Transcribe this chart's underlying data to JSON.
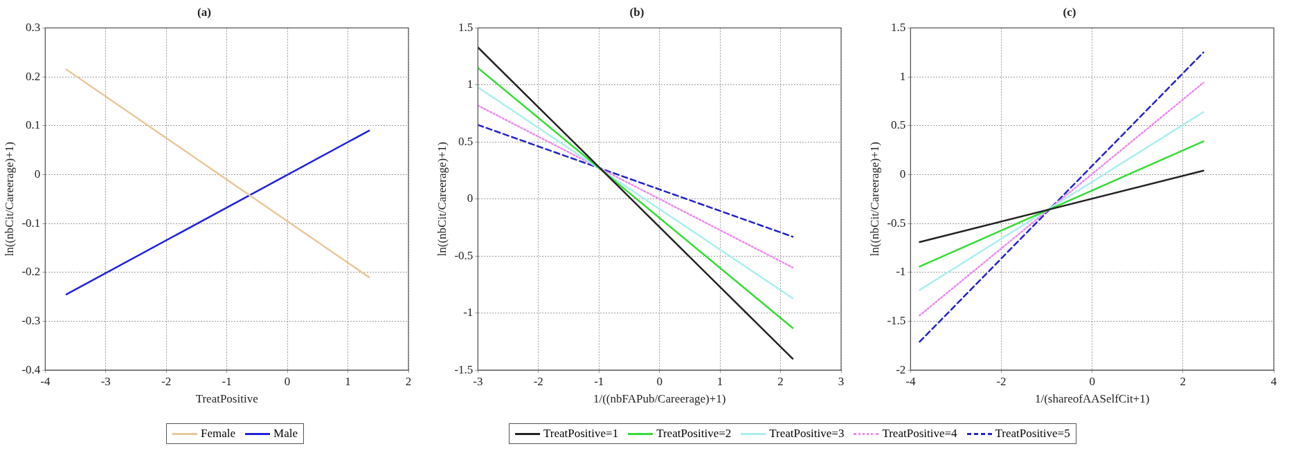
{
  "chart_data": [
    {
      "type": "line",
      "title": "(a)",
      "xlabel": "TreatPositive",
      "ylabel": "ln((nbCit/Careerage)+1)",
      "xlim": [
        -4,
        2
      ],
      "xticks": [
        -4,
        -3,
        -2,
        -1,
        0,
        1,
        2
      ],
      "ylim": [
        -0.4,
        0.3
      ],
      "yticks": [
        -0.4,
        -0.3,
        -0.2,
        -0.1,
        0,
        0.1,
        0.2,
        0.3
      ],
      "grid": true,
      "legend": "bottom",
      "marker": "none",
      "series": [
        {
          "name": "Female",
          "color": "#e8c89a",
          "x": [
            -3.65,
            1.35
          ],
          "values": [
            0.215,
            -0.21
          ],
          "line_style": "solid"
        },
        {
          "name": "Male",
          "color": "#2020e0",
          "x": [
            -3.65,
            1.35
          ],
          "values": [
            -0.245,
            0.09
          ],
          "line_style": "solid"
        }
      ]
    },
    {
      "type": "line",
      "title": "(b)",
      "xlabel": "1/((nbFAPub/Careerage)+1)",
      "ylabel": "ln((nbCit/Careerage)+1)",
      "xlim": [
        -3,
        3
      ],
      "xticks": [
        -3,
        -2,
        -1,
        0,
        1,
        2,
        3
      ],
      "ylim": [
        -1.5,
        1.5
      ],
      "yticks": [
        -1.5,
        -1,
        -0.5,
        0,
        0.5,
        1,
        1.5
      ],
      "grid": true,
      "legend": "bottom",
      "marker": "none",
      "series": [
        {
          "name": "TreatPositive=1",
          "color": "#222222",
          "x": [
            -3,
            2.2
          ],
          "values": [
            1.33,
            -1.4
          ],
          "line_style": "solid"
        },
        {
          "name": "TreatPositive=2",
          "color": "#33dd33",
          "x": [
            -3,
            2.2
          ],
          "values": [
            1.15,
            -1.13
          ],
          "line_style": "solid"
        },
        {
          "name": "TreatPositive=3",
          "color": "#aaeeee",
          "x": [
            -3,
            2.2
          ],
          "values": [
            0.98,
            -0.87
          ],
          "line_style": "solid"
        },
        {
          "name": "TreatPositive=4",
          "color": "#ee88ee",
          "x": [
            -3,
            2.2
          ],
          "values": [
            0.82,
            -0.6
          ],
          "line_style": "dotted"
        },
        {
          "name": "TreatPositive=5",
          "color": "#2222cc",
          "x": [
            -3,
            2.2
          ],
          "values": [
            0.65,
            -0.33
          ],
          "line_style": "dashed"
        }
      ]
    },
    {
      "type": "line",
      "title": "(c)",
      "xlabel": "1/(shareofAASelfCit+1)",
      "ylabel": "ln((nbCit/Careerage)+1)",
      "xlim": [
        -4,
        4
      ],
      "xticks": [
        -4,
        -2,
        0,
        2,
        4
      ],
      "ylim": [
        -2,
        1.5
      ],
      "yticks": [
        -2,
        -1.5,
        -1,
        -0.5,
        0,
        0.5,
        1,
        1.5
      ],
      "grid": true,
      "marker": "none",
      "series": [
        {
          "color": "#222222",
          "x": [
            -3.8,
            2.45
          ],
          "values": [
            -0.69,
            0.04
          ],
          "line_style": "solid"
        },
        {
          "color": "#33dd33",
          "x": [
            -3.8,
            2.45
          ],
          "values": [
            -0.94,
            0.34
          ],
          "line_style": "solid"
        },
        {
          "color": "#aaeeee",
          "x": [
            -3.8,
            2.45
          ],
          "values": [
            -1.18,
            0.64
          ],
          "line_style": "solid"
        },
        {
          "color": "#ee88ee",
          "x": [
            -3.8,
            2.45
          ],
          "values": [
            -1.44,
            0.94
          ],
          "line_style": "dotted"
        },
        {
          "color": "#2222cc",
          "x": [
            -3.8,
            2.45
          ],
          "values": [
            -1.71,
            1.25
          ],
          "line_style": "dashed"
        }
      ]
    }
  ]
}
